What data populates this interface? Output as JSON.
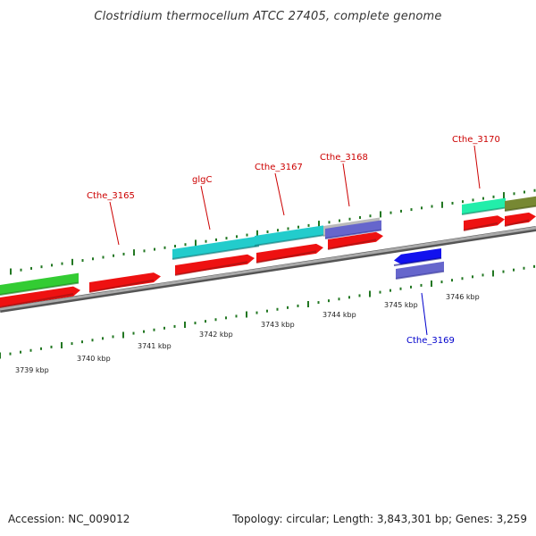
{
  "header": {
    "title": "Clostridium thermocellum ATCC 27405, complete genome"
  },
  "footer": {
    "accession": "Accession: NC_009012",
    "stats": "Topology: circular; Length: 3,843,301 bp; Genes: 3,259"
  },
  "scale_labels": [
    "3739 kbp",
    "3740 kbp",
    "3741 kbp",
    "3742 kbp",
    "3743 kbp",
    "3744 kbp",
    "3745 kbp",
    "3746 kbp"
  ],
  "gene_labels": [
    {
      "name": "Cthe_3165",
      "color": "#cc0000"
    },
    {
      "name": "glgC",
      "color": "#cc0000"
    },
    {
      "name": "Cthe_3167",
      "color": "#cc0000"
    },
    {
      "name": "Cthe_3168",
      "color": "#cc0000"
    },
    {
      "name": "Cthe_3170",
      "color": "#cc0000"
    },
    {
      "name": "Cthe_3169",
      "color": "#0000cc"
    }
  ],
  "colors": {
    "cds": "#ee1111",
    "gene_green": "#33cc33",
    "gene_cyan": "#22cccc",
    "gene_teal": "#22eeaa",
    "gene_olive": "#778833",
    "gene_gray": "#bbbbbb",
    "gene_blue": "#1111ee",
    "gene_purple": "#6666cc",
    "backbone": "#888888",
    "ticks": "#227722"
  }
}
